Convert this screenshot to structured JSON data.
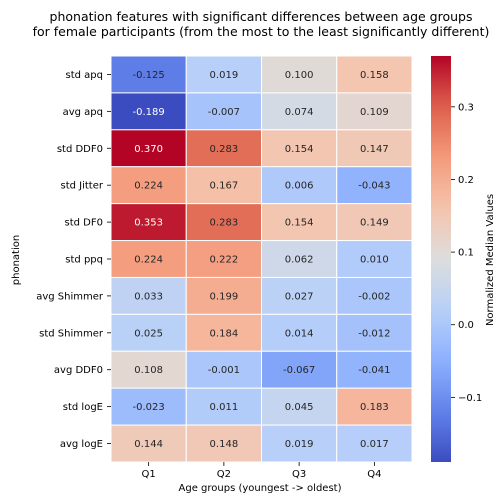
{
  "chart_data": {
    "type": "heatmap",
    "title_lines": [
      "phonation features with significant differences between age groups",
      "for female participants (from the most to the least significantly different)"
    ],
    "xlabel": "Age groups (youngest -> oldest)",
    "ylabel": "phonation",
    "x_categories": [
      "Q1",
      "Q2",
      "Q3",
      "Q4"
    ],
    "y_categories": [
      "std apq",
      "avg apq",
      "std DDF0",
      "std Jitter",
      "std DF0",
      "std ppq",
      "avg Shimmer",
      "std Shimmer",
      "avg DDF0",
      "std logE",
      "avg logE"
    ],
    "values": [
      [
        -0.125,
        0.019,
        0.1,
        0.158
      ],
      [
        -0.189,
        -0.007,
        0.074,
        0.109
      ],
      [
        0.37,
        0.283,
        0.154,
        0.147
      ],
      [
        0.224,
        0.167,
        0.006,
        -0.043
      ],
      [
        0.353,
        0.283,
        0.154,
        0.149
      ],
      [
        0.224,
        0.222,
        0.062,
        0.01
      ],
      [
        0.033,
        0.199,
        0.027,
        -0.002
      ],
      [
        0.025,
        0.184,
        0.014,
        -0.012
      ],
      [
        0.108,
        -0.001,
        -0.067,
        -0.041
      ],
      [
        -0.023,
        0.011,
        0.045,
        0.183
      ],
      [
        0.144,
        0.148,
        0.019,
        0.017
      ]
    ],
    "value_labels": [
      [
        "-0.125",
        "0.019",
        "0.100",
        "0.158"
      ],
      [
        "-0.189",
        "-0.007",
        "0.074",
        "0.109"
      ],
      [
        "0.370",
        "0.283",
        "0.154",
        "0.147"
      ],
      [
        "0.224",
        "0.167",
        "0.006",
        "-0.043"
      ],
      [
        "0.353",
        "0.283",
        "0.154",
        "0.149"
      ],
      [
        "0.224",
        "0.222",
        "0.062",
        "0.010"
      ],
      [
        "0.033",
        "0.199",
        "0.027",
        "-0.002"
      ],
      [
        "0.025",
        "0.184",
        "0.014",
        "-0.012"
      ],
      [
        "0.108",
        "-0.001",
        "-0.067",
        "-0.041"
      ],
      [
        "-0.023",
        "0.011",
        "0.045",
        "0.183"
      ],
      [
        "0.144",
        "0.148",
        "0.019",
        "0.017"
      ]
    ],
    "colormap": "coolwarm",
    "vmin": -0.189,
    "vmax": 0.37,
    "colorbar": {
      "label": "Normalized Median Values",
      "ticks": [
        -0.1,
        0.0,
        0.1,
        0.2,
        0.3
      ],
      "tick_labels": [
        "−0.1",
        "0.0",
        "0.1",
        "0.2",
        "0.3"
      ]
    }
  }
}
